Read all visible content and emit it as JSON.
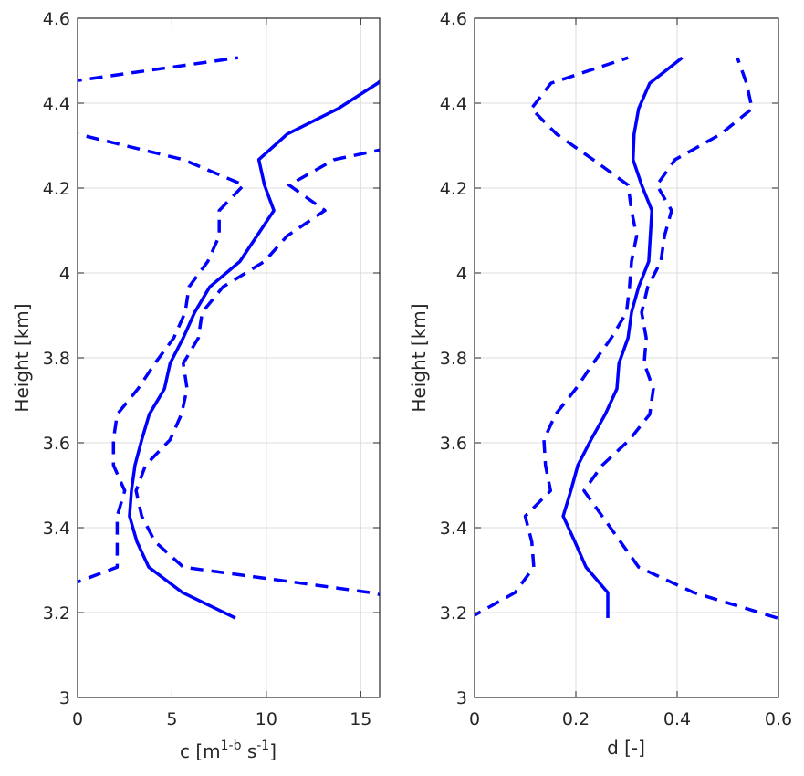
{
  "chart_data": [
    {
      "type": "line",
      "ylabel": "Height [km]",
      "xlabel_parts": [
        "c [m",
        "1-b",
        " s",
        "-1",
        "]"
      ],
      "xlim": [
        0,
        16
      ],
      "ylim": [
        3,
        4.6
      ],
      "xticks": [
        0,
        5,
        10,
        15
      ],
      "yticks": [
        3,
        3.2,
        3.4,
        3.6,
        3.8,
        4,
        4.2,
        4.4,
        4.6
      ],
      "grid": true,
      "color": "#0000ff",
      "y": [
        3.187,
        3.247,
        3.307,
        3.367,
        3.427,
        3.487,
        3.547,
        3.607,
        3.667,
        3.727,
        3.787,
        3.847,
        3.907,
        3.967,
        4.027,
        4.087,
        4.147,
        4.207,
        4.267,
        4.327,
        4.387,
        4.447,
        4.507
      ],
      "series": [
        {
          "style": "solid",
          "x": [
            8.36,
            5.56,
            3.77,
            3.14,
            2.75,
            2.85,
            3.04,
            3.4,
            3.8,
            4.6,
            4.9,
            5.6,
            6.2,
            7.0,
            8.6,
            9.5,
            10.4,
            9.9,
            9.6,
            11.1,
            13.8,
            15.9,
            17.5
          ]
        },
        {
          "style": "dashed",
          "x": [
            null,
            -1.5,
            2.1,
            2.1,
            2.1,
            2.5,
            1.9,
            1.9,
            2.1,
            3.2,
            4.1,
            5.1,
            5.7,
            5.9,
            6.9,
            7.5,
            7.5,
            8.8,
            5.6,
            0.0,
            -5,
            -1,
            8.5
          ]
        },
        {
          "style": "dashed",
          "x": [
            22,
            15.5,
            5.6,
            4.1,
            3.4,
            3.1,
            3.6,
            4.9,
            5.5,
            5.8,
            5.6,
            6.4,
            6.6,
            7.7,
            9.9,
            11.1,
            13.1,
            11.2,
            13.6,
            20,
            null,
            null,
            null
          ]
        }
      ]
    },
    {
      "type": "line",
      "ylabel": "Height [km]",
      "xlabel": "d [-]",
      "xlim": [
        0,
        0.6
      ],
      "ylim": [
        3,
        4.6
      ],
      "xticks": [
        0,
        0.2,
        0.4,
        0.6
      ],
      "yticks": [
        3,
        3.2,
        3.4,
        3.6,
        3.8,
        4,
        4.2,
        4.4,
        4.6
      ],
      "grid": true,
      "color": "#0000ff",
      "y": [
        3.187,
        3.247,
        3.307,
        3.367,
        3.427,
        3.487,
        3.547,
        3.607,
        3.667,
        3.727,
        3.787,
        3.847,
        3.907,
        3.967,
        4.027,
        4.087,
        4.147,
        4.207,
        4.267,
        4.327,
        4.387,
        4.447,
        4.507
      ],
      "series": [
        {
          "style": "solid",
          "x": [
            0.263,
            0.263,
            0.22,
            0.198,
            0.175,
            0.19,
            0.204,
            0.23,
            0.258,
            0.281,
            0.285,
            0.303,
            0.31,
            0.324,
            0.344,
            0.347,
            0.35,
            0.33,
            0.313,
            0.315,
            0.324,
            0.346,
            0.41
          ]
        },
        {
          "style": "dashed",
          "x": [
            -0.01,
            0.08,
            0.117,
            0.113,
            0.1,
            0.15,
            0.14,
            0.137,
            0.16,
            0.2,
            0.234,
            0.27,
            0.3,
            0.306,
            0.31,
            0.32,
            0.31,
            0.303,
            0.234,
            0.162,
            0.112,
            0.151,
            0.303
          ]
        },
        {
          "style": "dashed",
          "x": [
            0.598,
            0.433,
            0.324,
            0.288,
            0.252,
            0.216,
            0.252,
            0.306,
            0.346,
            0.353,
            0.335,
            0.339,
            0.33,
            0.342,
            0.368,
            0.375,
            0.389,
            0.36,
            0.396,
            0.486,
            0.548,
            0.537,
            0.519
          ]
        }
      ]
    }
  ]
}
